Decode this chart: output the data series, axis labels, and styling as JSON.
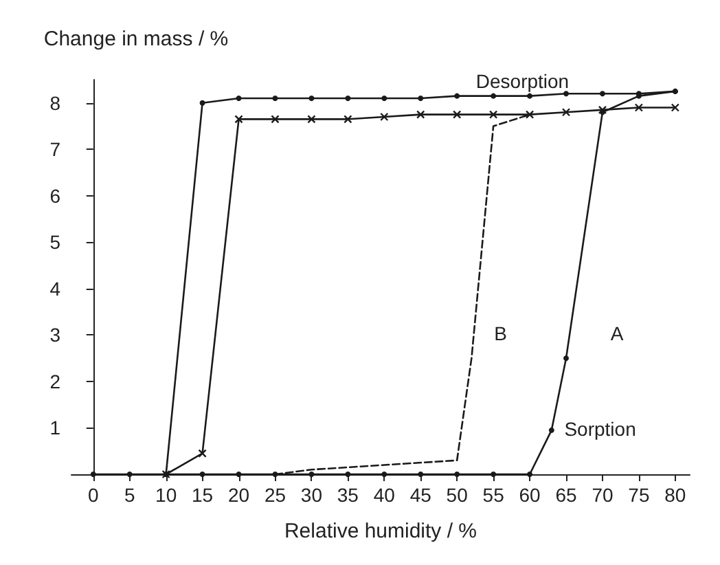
{
  "chart_data": {
    "type": "line",
    "xlabel": "Relative humidity / %",
    "ylabel": "Change in mass / %",
    "xlim": [
      -3,
      82
    ],
    "xticks": [
      0,
      5,
      10,
      15,
      20,
      25,
      30,
      35,
      40,
      45,
      50,
      55,
      60,
      65,
      70,
      75,
      80
    ],
    "ylim": [
      0,
      8.5
    ],
    "yticks": [
      1,
      2,
      3,
      4,
      5,
      6,
      7,
      8
    ],
    "grid": false,
    "series": [
      {
        "color": "#1a1a1a",
        "marker": "circle",
        "line_style": "solid",
        "x": [
          0,
          5,
          10,
          15,
          20,
          25,
          30,
          35,
          40,
          45,
          50,
          55,
          60,
          63,
          65,
          70,
          75,
          80
        ],
        "values": [
          0,
          0,
          0,
          0,
          0,
          0,
          0,
          0,
          0,
          0,
          0,
          0,
          0,
          0.95,
          2.5,
          7.8,
          8.15,
          8.25
        ]
      },
      {
        "color": "#1a1a1a",
        "marker": "circle",
        "line_style": "solid",
        "x": [
          80,
          75,
          70,
          65,
          60,
          55,
          50,
          45,
          40,
          35,
          30,
          25,
          20,
          15,
          10
        ],
        "values": [
          8.25,
          8.2,
          8.2,
          8.2,
          8.15,
          8.15,
          8.15,
          8.1,
          8.1,
          8.1,
          8.1,
          8.1,
          8.1,
          8.0,
          0
        ]
      },
      {
        "color": "#1a1a1a",
        "marker": "none",
        "line_style": "dashed",
        "x": [
          25,
          30,
          50,
          52,
          55,
          60
        ],
        "values": [
          0,
          0.1,
          0.3,
          2.5,
          7.5,
          7.75
        ]
      },
      {
        "color": "#1a1a1a",
        "marker": "cross",
        "line_style": "solid",
        "x": [
          80,
          75,
          70,
          65,
          60,
          55,
          50,
          45,
          40,
          35,
          30,
          25,
          20,
          15,
          10
        ],
        "values": [
          7.9,
          7.9,
          7.85,
          7.8,
          7.75,
          7.75,
          7.75,
          7.75,
          7.7,
          7.65,
          7.65,
          7.65,
          7.65,
          0.45,
          0
        ]
      }
    ],
    "annotations": [
      {
        "text": "Desorption",
        "x": 59,
        "y": 8.15
      },
      {
        "text": "Sorption",
        "x": 64,
        "y": 0.95
      },
      "A",
      "B"
    ]
  }
}
